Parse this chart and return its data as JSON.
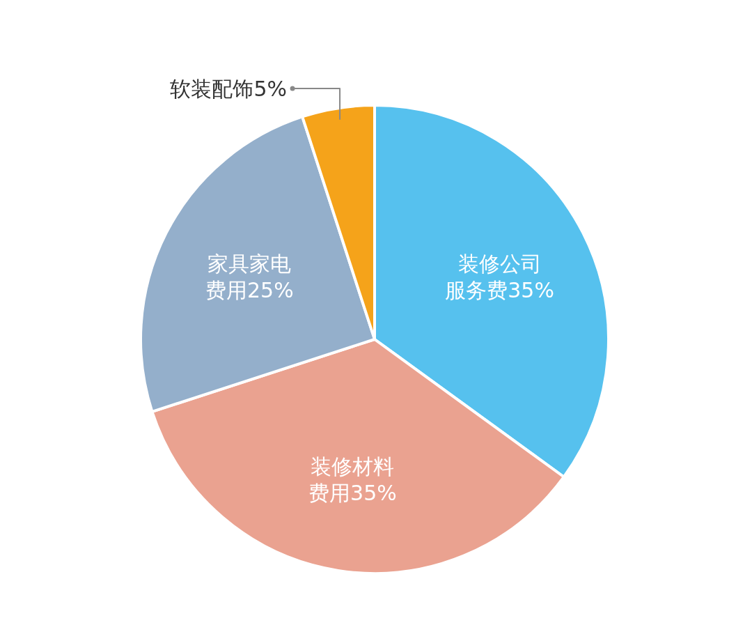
{
  "chart_data": {
    "type": "pie",
    "categories": [
      "装修公司服务费",
      "装修材料费用",
      "家具家电费用",
      "软装配饰"
    ],
    "values": [
      35,
      35,
      25,
      5
    ],
    "value_labels": [
      "35%",
      "35%",
      "25%",
      "5%"
    ],
    "colors": [
      "#56c1ee",
      "#eaa290",
      "#94afcb",
      "#f5a31a"
    ]
  }
}
